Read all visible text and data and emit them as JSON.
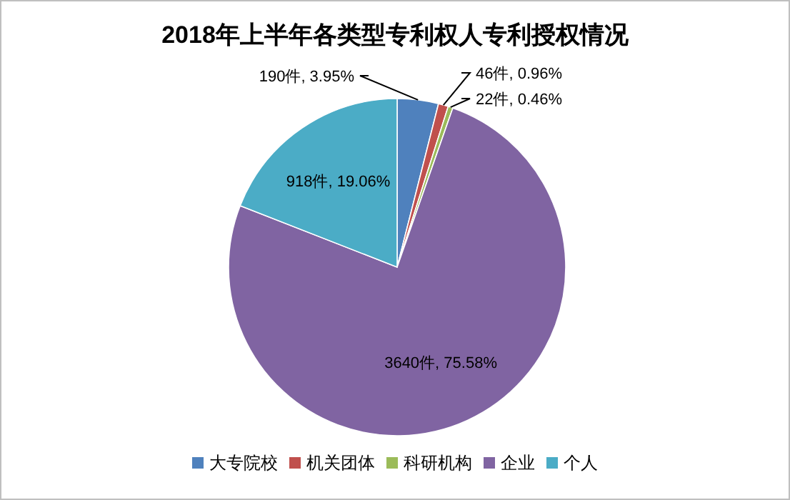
{
  "chart_data": {
    "type": "pie",
    "title": "2018年上半年各类型专利权人专利授权情况",
    "categories": [
      "大专院校",
      "机关团体",
      "科研机构",
      "企业",
      "个人"
    ],
    "values": [
      190,
      46,
      22,
      3640,
      918
    ],
    "colors": [
      "#4f81bd",
      "#c0504d",
      "#9bbb59",
      "#8064a2",
      "#4bacc6"
    ],
    "value_labels": [
      "190件, 3.95%",
      "46件, 0.96%",
      "22件, 0.46%",
      "3640件, 75.58%",
      "918件, 19.06%"
    ],
    "legend": "bottom"
  }
}
